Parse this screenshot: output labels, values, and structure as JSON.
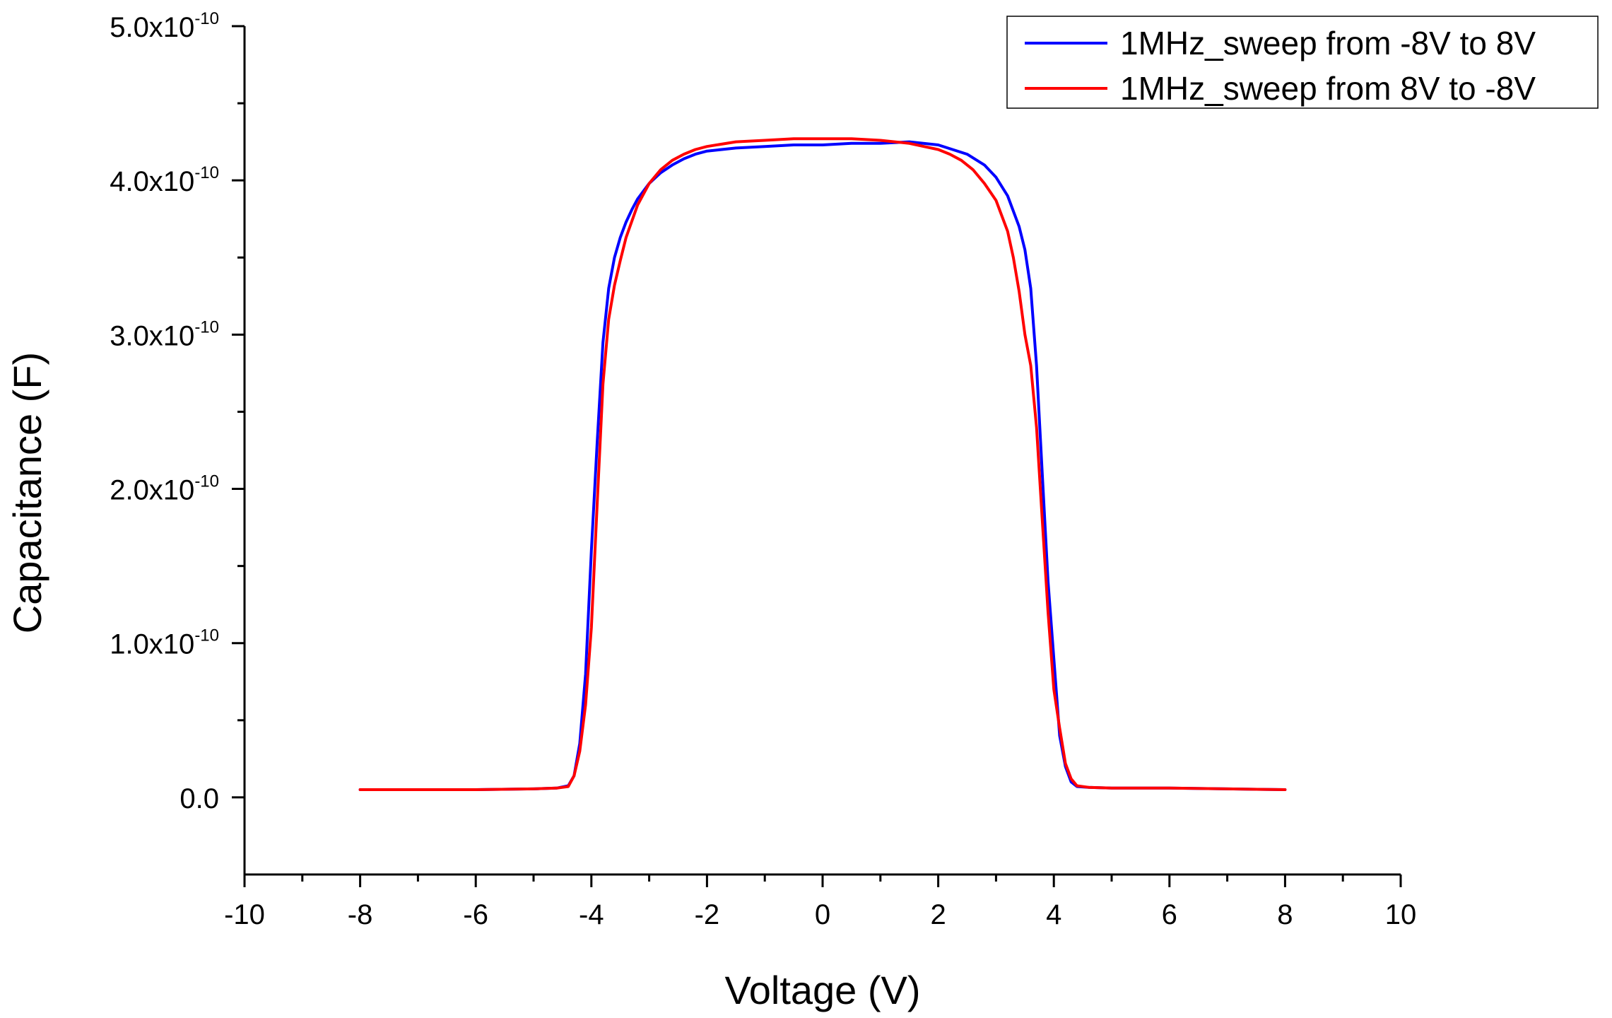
{
  "chart_data": {
    "type": "line",
    "xlabel": "Voltage (V)",
    "ylabel": "Capacitance (F)",
    "xlim": [
      -10,
      10
    ],
    "ylim": [
      -5e-11,
      5e-10
    ],
    "x_ticks": [
      -10,
      -8,
      -6,
      -4,
      -2,
      0,
      2,
      4,
      6,
      8,
      10
    ],
    "y_ticks": [
      {
        "value": 0,
        "label": "0.0",
        "exp": ""
      },
      {
        "value": 1e-10,
        "label": "1.0x10",
        "exp": "-10"
      },
      {
        "value": 2e-10,
        "label": "2.0x10",
        "exp": "-10"
      },
      {
        "value": 3e-10,
        "label": "3.0x10",
        "exp": "-10"
      },
      {
        "value": 4e-10,
        "label": "4.0x10",
        "exp": "-10"
      },
      {
        "value": 5e-10,
        "label": "5.0x10",
        "exp": "-10"
      }
    ],
    "grid": false,
    "legend_position": "top-right",
    "series": [
      {
        "name": "1MHz_sweep from -8V to 8V",
        "color": "#0000ff",
        "x": [
          -8,
          -6,
          -5,
          -4.6,
          -4.4,
          -4.3,
          -4.2,
          -4.1,
          -4.0,
          -3.9,
          -3.8,
          -3.7,
          -3.6,
          -3.5,
          -3.4,
          -3.3,
          -3.2,
          -3.0,
          -2.8,
          -2.6,
          -2.4,
          -2.2,
          -2.0,
          -1.5,
          -1.0,
          -0.5,
          0,
          0.5,
          1.0,
          1.5,
          2.0,
          2.5,
          2.8,
          3.0,
          3.2,
          3.4,
          3.5,
          3.6,
          3.7,
          3.8,
          3.9,
          4.0,
          4.1,
          4.2,
          4.3,
          4.4,
          4.6,
          5.0,
          6.0,
          7.0,
          8.0
        ],
        "y": [
          5e-12,
          5e-12,
          5.5e-12,
          6e-12,
          7.5e-12,
          1.4e-11,
          3.5e-11,
          8e-11,
          1.6e-10,
          2.3e-10,
          2.95e-10,
          3.3e-10,
          3.5e-10,
          3.63e-10,
          3.73e-10,
          3.81e-10,
          3.88e-10,
          3.98e-10,
          4.05e-10,
          4.1e-10,
          4.14e-10,
          4.17e-10,
          4.19e-10,
          4.21e-10,
          4.22e-10,
          4.23e-10,
          4.23e-10,
          4.24e-10,
          4.24e-10,
          4.25e-10,
          4.23e-10,
          4.17e-10,
          4.1e-10,
          4.02e-10,
          3.9e-10,
          3.7e-10,
          3.55e-10,
          3.3e-10,
          2.8e-10,
          2.1e-10,
          1.4e-10,
          9e-11,
          4e-11,
          2e-11,
          1e-11,
          7e-12,
          6.5e-12,
          6e-12,
          6e-12,
          5.5e-12,
          5e-12
        ]
      },
      {
        "name": "1MHz_sweep from 8V to -8V",
        "color": "#ff0000",
        "x": [
          8.0,
          7.0,
          6.0,
          5.0,
          4.6,
          4.4,
          4.3,
          4.2,
          4.1,
          4.0,
          3.9,
          3.8,
          3.7,
          3.6,
          3.5,
          3.4,
          3.3,
          3.2,
          3.0,
          2.8,
          2.6,
          2.4,
          2.2,
          2.0,
          1.5,
          1.0,
          0.5,
          0,
          -0.5,
          -1.0,
          -1.5,
          -2.0,
          -2.2,
          -2.4,
          -2.6,
          -2.8,
          -3.0,
          -3.2,
          -3.4,
          -3.5,
          -3.6,
          -3.7,
          -3.8,
          -3.9,
          -4.0,
          -4.1,
          -4.2,
          -4.3,
          -4.4,
          -4.6,
          -5.0,
          -6.0,
          -8.0
        ],
        "y": [
          5e-12,
          5.5e-12,
          6e-12,
          6e-12,
          6.5e-12,
          7.5e-12,
          1.2e-11,
          2.2e-11,
          4.5e-11,
          7e-11,
          1.2e-10,
          1.8e-10,
          2.4e-10,
          2.8e-10,
          3e-10,
          3.28e-10,
          3.5e-10,
          3.67e-10,
          3.87e-10,
          3.98e-10,
          4.07e-10,
          4.13e-10,
          4.17e-10,
          4.2e-10,
          4.24e-10,
          4.26e-10,
          4.27e-10,
          4.27e-10,
          4.27e-10,
          4.26e-10,
          4.25e-10,
          4.22e-10,
          4.2e-10,
          4.17e-10,
          4.13e-10,
          4.07e-10,
          3.98e-10,
          3.84e-10,
          3.63e-10,
          3.48e-10,
          3.32e-10,
          3.1e-10,
          2.68e-10,
          1.9e-10,
          1.1e-10,
          6e-11,
          3e-11,
          1.4e-11,
          7e-12,
          6e-12,
          5.5e-12,
          5e-12,
          5e-12
        ]
      }
    ]
  }
}
